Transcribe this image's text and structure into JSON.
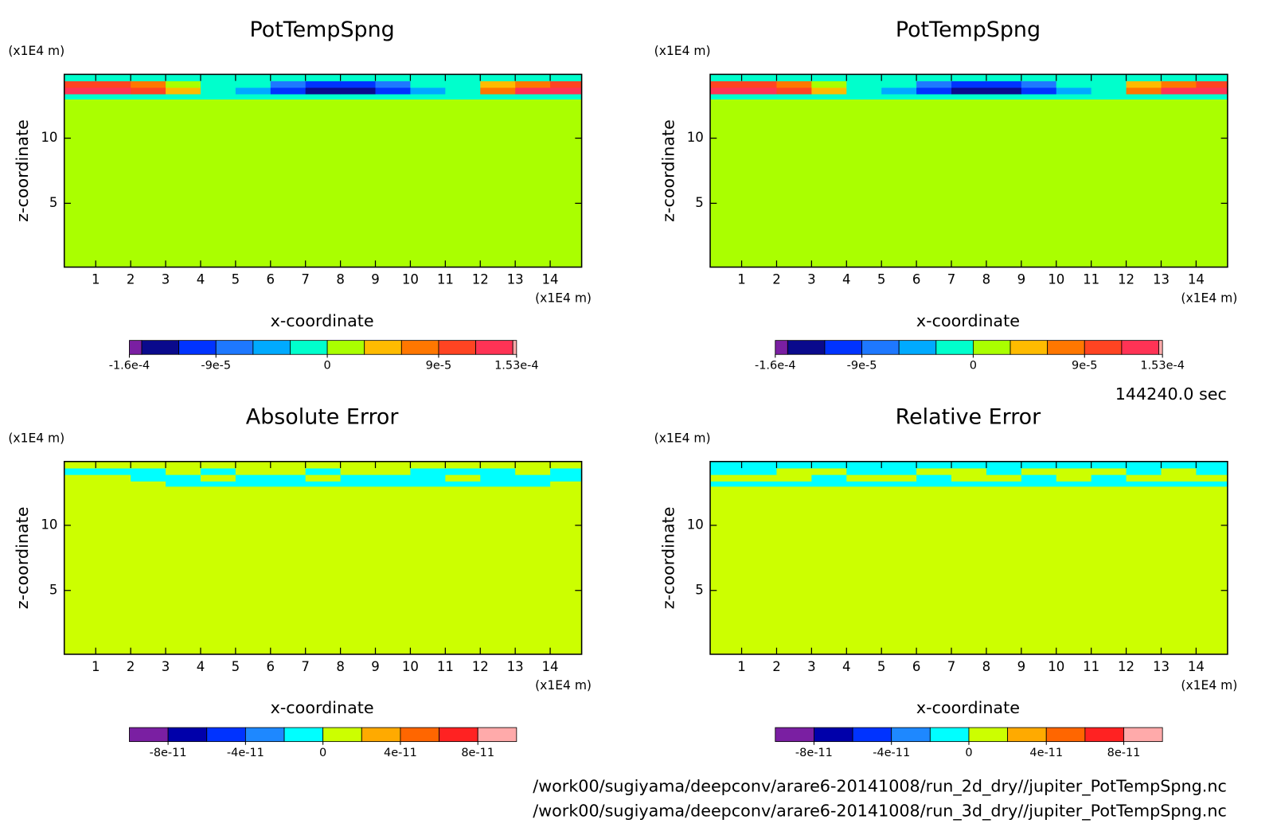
{
  "chart_data": [
    {
      "type": "contour",
      "title": "PotTempSpng",
      "xlabel": "x-coordinate",
      "ylabel": "z-coordinate",
      "xunit": "(x1E4 m)",
      "yunit": "(x1E4 m)",
      "xlim": [
        0.1,
        14.9
      ],
      "ylim": [
        0.1,
        14.9
      ],
      "xticks": [
        1,
        2,
        3,
        4,
        5,
        6,
        7,
        8,
        9,
        10,
        11,
        12,
        13,
        14
      ],
      "yticks": [
        5,
        10
      ],
      "x": [
        0.1,
        1,
        2,
        3,
        4,
        5,
        6,
        7,
        8,
        9,
        10,
        11,
        12,
        13,
        14,
        14.9
      ],
      "y": [
        0.1,
        13,
        13.4,
        13.9,
        14.4,
        14.9
      ],
      "z": [
        [
          1e-05,
          1e-05,
          1e-05,
          1e-05,
          1e-05,
          1e-05,
          1e-05,
          1e-05,
          1e-05,
          1e-05,
          1e-05,
          1e-05,
          1e-05,
          1e-05,
          1e-05
        ],
        [
          -1e-05,
          -1e-05,
          -1e-05,
          -1e-05,
          -1e-05,
          -1e-05,
          -1e-05,
          -1e-05,
          -1e-05,
          -1e-05,
          -1e-05,
          -1e-05,
          -1e-05,
          -1e-05,
          -1e-05
        ],
        [
          0.00013,
          0.00013,
          0.0001,
          5e-05,
          -1e-05,
          -4e-05,
          -0.0001,
          -0.00013,
          -0.00013,
          -0.0001,
          -5e-05,
          -1e-05,
          7e-05,
          0.00012,
          0.00013
        ],
        [
          0.0001,
          0.0001,
          7e-05,
          2e-05,
          -1e-05,
          -2e-05,
          -7e-05,
          -9.5e-05,
          -9.5e-05,
          -7e-05,
          -2e-05,
          -1e-05,
          4e-05,
          8e-05,
          0.0001
        ],
        [
          -1e-05,
          -1e-05,
          -1e-05,
          -1e-05,
          -1e-05,
          -1e-05,
          -1e-05,
          -1e-05,
          -1e-05,
          -1e-05,
          -1e-05,
          -1e-05,
          -1e-05,
          -1e-05,
          -1e-05
        ]
      ],
      "levels": [
        -0.00016,
        -0.00015,
        -0.00012,
        -9e-05,
        -6e-05,
        -3e-05,
        0,
        3e-05,
        6e-05,
        9e-05,
        0.00012,
        0.00015,
        0.000153
      ],
      "colors": [
        "#7a1fa2",
        "#0a0a8c",
        "#0033ff",
        "#1e78ff",
        "#00aaff",
        "#00ffcc",
        "#aaff00",
        "#ffbb00",
        "#ff7700",
        "#ff4422",
        "#ff3355",
        "#ffaaaa"
      ],
      "cbticks": [
        {
          "value": -0.00016,
          "label": "-1.6e-4"
        },
        {
          "value": -9e-05,
          "label": "-9e-5"
        },
        0,
        {
          "value": 9e-05,
          "label": "9e-5"
        },
        {
          "value": 0.000153,
          "label": "1.53e-4"
        }
      ]
    },
    {
      "type": "contour",
      "title": "PotTempSpng",
      "xlabel": "x-coordinate",
      "ylabel": "z-coordinate",
      "xunit": "(x1E4 m)",
      "yunit": "(x1E4 m)",
      "xlim": [
        0.1,
        14.9
      ],
      "ylim": [
        0.1,
        14.9
      ],
      "xticks": [
        1,
        2,
        3,
        4,
        5,
        6,
        7,
        8,
        9,
        10,
        11,
        12,
        13,
        14
      ],
      "yticks": [
        5,
        10
      ],
      "x": [
        0.1,
        1,
        2,
        3,
        4,
        5,
        6,
        7,
        8,
        9,
        10,
        11,
        12,
        13,
        14,
        14.9
      ],
      "y": [
        0.1,
        13,
        13.4,
        13.9,
        14.4,
        14.9
      ],
      "z": [
        [
          1e-05,
          1e-05,
          1e-05,
          1e-05,
          1e-05,
          1e-05,
          1e-05,
          1e-05,
          1e-05,
          1e-05,
          1e-05,
          1e-05,
          1e-05,
          1e-05,
          1e-05
        ],
        [
          -1e-05,
          -1e-05,
          -1e-05,
          -1e-05,
          -1e-05,
          -1e-05,
          -1e-05,
          -1e-05,
          -1e-05,
          -1e-05,
          -1e-05,
          -1e-05,
          -1e-05,
          -1e-05,
          -1e-05
        ],
        [
          0.00013,
          0.00013,
          0.0001,
          5e-05,
          -1e-05,
          -4e-05,
          -0.0001,
          -0.00013,
          -0.00013,
          -0.0001,
          -5e-05,
          -1e-05,
          7e-05,
          0.00012,
          0.00013
        ],
        [
          0.0001,
          0.0001,
          7e-05,
          2e-05,
          -1e-05,
          -2e-05,
          -7e-05,
          -9.5e-05,
          -9.5e-05,
          -7e-05,
          -2e-05,
          -1e-05,
          4e-05,
          8e-05,
          0.0001
        ],
        [
          -1e-05,
          -1e-05,
          -1e-05,
          -1e-05,
          -1e-05,
          -1e-05,
          -1e-05,
          -1e-05,
          -1e-05,
          -1e-05,
          -1e-05,
          -1e-05,
          -1e-05,
          -1e-05,
          -1e-05
        ]
      ],
      "levels": [
        -0.00016,
        -0.00015,
        -0.00012,
        -9e-05,
        -6e-05,
        -3e-05,
        0,
        3e-05,
        6e-05,
        9e-05,
        0.00012,
        0.00015,
        0.000153
      ],
      "colors": [
        "#7a1fa2",
        "#0a0a8c",
        "#0033ff",
        "#1e78ff",
        "#00aaff",
        "#00ffcc",
        "#aaff00",
        "#ffbb00",
        "#ff7700",
        "#ff4422",
        "#ff3355",
        "#ffaaaa"
      ],
      "cbticks": [
        {
          "value": -0.00016,
          "label": "-1.6e-4"
        },
        {
          "value": -9e-05,
          "label": "-9e-5"
        },
        0,
        {
          "value": 9e-05,
          "label": "9e-5"
        },
        {
          "value": 0.000153,
          "label": "1.53e-4"
        }
      ]
    },
    {
      "type": "contour",
      "title": "Absolute Error",
      "xlabel": "x-coordinate",
      "ylabel": "z-coordinate",
      "xunit": "(x1E4 m)",
      "yunit": "(x1E4 m)",
      "xlim": [
        0.1,
        14.9
      ],
      "ylim": [
        0.1,
        14.9
      ],
      "xticks": [
        1,
        2,
        3,
        4,
        5,
        6,
        7,
        8,
        9,
        10,
        11,
        12,
        13,
        14
      ],
      "yticks": [
        5,
        10
      ],
      "x": [
        0.1,
        1,
        2,
        3,
        4,
        5,
        6,
        7,
        8,
        9,
        10,
        11,
        12,
        13,
        14,
        14.9
      ],
      "y": [
        0.1,
        13,
        13.4,
        13.9,
        14.4,
        14.9
      ],
      "z": [
        [
          1e-11,
          1e-11,
          1e-11,
          1e-11,
          1e-11,
          1e-11,
          1e-11,
          1e-11,
          1e-11,
          1e-11,
          1e-11,
          1e-11,
          1e-11,
          1e-11,
          1e-11
        ],
        [
          1e-11,
          1e-11,
          1e-11,
          -1e-11,
          -1e-11,
          -1e-11,
          -1e-11,
          -1e-11,
          -1e-11,
          -1e-11,
          -1e-11,
          -1e-11,
          -1e-11,
          -1e-11,
          1e-11
        ],
        [
          1e-11,
          1e-11,
          -1e-11,
          -1e-11,
          1e-11,
          -1e-11,
          -1e-11,
          1e-11,
          -1e-11,
          -1e-11,
          -1e-11,
          1e-11,
          -1e-11,
          -1e-11,
          -1e-11
        ],
        [
          -1e-11,
          -1e-11,
          -1e-11,
          1e-11,
          -1e-11,
          1e-11,
          1e-11,
          -1e-11,
          1e-11,
          1e-11,
          -1e-11,
          -1e-11,
          -1e-11,
          1e-11,
          -1e-11
        ],
        [
          1e-11,
          1e-11,
          1e-11,
          1e-11,
          1e-11,
          1e-11,
          1e-11,
          1e-11,
          1e-11,
          1e-11,
          1e-11,
          1e-11,
          1e-11,
          1e-11,
          1e-11
        ]
      ],
      "levels": [
        -1e-10,
        -8e-11,
        -6e-11,
        -4e-11,
        -2e-11,
        0,
        2e-11,
        4e-11,
        6e-11,
        8e-11,
        1e-10
      ],
      "colors": [
        "#7a1fa2",
        "#0000aa",
        "#0033ff",
        "#1e88ff",
        "#00ffff",
        "#ccff00",
        "#ffaa00",
        "#ff6600",
        "#ff2222",
        "#ffaaaa"
      ],
      "cbticks": [
        {
          "value": -8e-11,
          "label": "-8e-11"
        },
        {
          "value": -4e-11,
          "label": "-4e-11"
        },
        0,
        {
          "value": 4e-11,
          "label": "4e-11"
        },
        {
          "value": 8e-11,
          "label": "8e-11"
        }
      ]
    },
    {
      "type": "contour",
      "title": "Relative Error",
      "xlabel": "x-coordinate",
      "ylabel": "z-coordinate",
      "xunit": "(x1E4 m)",
      "yunit": "(x1E4 m)",
      "xlim": [
        0.1,
        14.9
      ],
      "ylim": [
        0.1,
        14.9
      ],
      "xticks": [
        1,
        2,
        3,
        4,
        5,
        6,
        7,
        8,
        9,
        10,
        11,
        12,
        13,
        14
      ],
      "yticks": [
        5,
        10
      ],
      "x": [
        0.1,
        1,
        2,
        3,
        4,
        5,
        6,
        7,
        8,
        9,
        10,
        11,
        12,
        13,
        14,
        14.9
      ],
      "y": [
        0.1,
        13,
        13.4,
        13.9,
        14.4,
        14.9
      ],
      "z": [
        [
          1e-11,
          1e-11,
          1e-11,
          1e-11,
          1e-11,
          1e-11,
          1e-11,
          1e-11,
          1e-11,
          1e-11,
          1e-11,
          1e-11,
          1e-11,
          1e-11,
          1e-11
        ],
        [
          -1e-11,
          -1e-11,
          -1e-11,
          -1e-11,
          -1e-11,
          -1e-11,
          -1e-11,
          -1e-11,
          -1e-11,
          -1e-11,
          -1e-11,
          -1e-11,
          -1e-11,
          -1e-11,
          -1e-11
        ],
        [
          1e-11,
          1e-11,
          1e-11,
          -1e-11,
          1e-11,
          1e-11,
          -1e-11,
          1e-11,
          1e-11,
          -1e-11,
          1e-11,
          -1e-11,
          1e-11,
          1e-11,
          1e-11
        ],
        [
          -1e-11,
          -1e-11,
          1e-11,
          1e-11,
          -1e-11,
          -1e-11,
          1e-11,
          1e-11,
          -1e-11,
          1e-11,
          1e-11,
          1e-11,
          -1e-11,
          1e-11,
          -1e-11
        ],
        [
          -1e-11,
          -1e-11,
          -1e-11,
          -1e-11,
          -1e-11,
          -1e-11,
          -1e-11,
          -1e-11,
          -1e-11,
          -1e-11,
          -1e-11,
          -1e-11,
          -1e-11,
          -1e-11,
          -1e-11
        ]
      ],
      "levels": [
        -1e-10,
        -8e-11,
        -6e-11,
        -4e-11,
        -2e-11,
        0,
        2e-11,
        4e-11,
        6e-11,
        8e-11,
        1e-10
      ],
      "colors": [
        "#7a1fa2",
        "#0000aa",
        "#0033ff",
        "#1e88ff",
        "#00ffff",
        "#ccff00",
        "#ffaa00",
        "#ff6600",
        "#ff2222",
        "#ffaaaa"
      ],
      "cbticks": [
        {
          "value": -8e-11,
          "label": "-8e-11"
        },
        {
          "value": -4e-11,
          "label": "-4e-11"
        },
        0,
        {
          "value": 4e-11,
          "label": "4e-11"
        },
        {
          "value": 8e-11,
          "label": "8e-11"
        }
      ]
    }
  ],
  "annotations": {
    "time": "144240.0 sec",
    "files": [
      "/work00/sugiyama/deepconv/arare6-20141008/run_2d_dry//jupiter_PotTempSpng.nc",
      "/work00/sugiyama/deepconv/arare6-20141008/run_3d_dry//jupiter_PotTempSpng.nc"
    ]
  }
}
